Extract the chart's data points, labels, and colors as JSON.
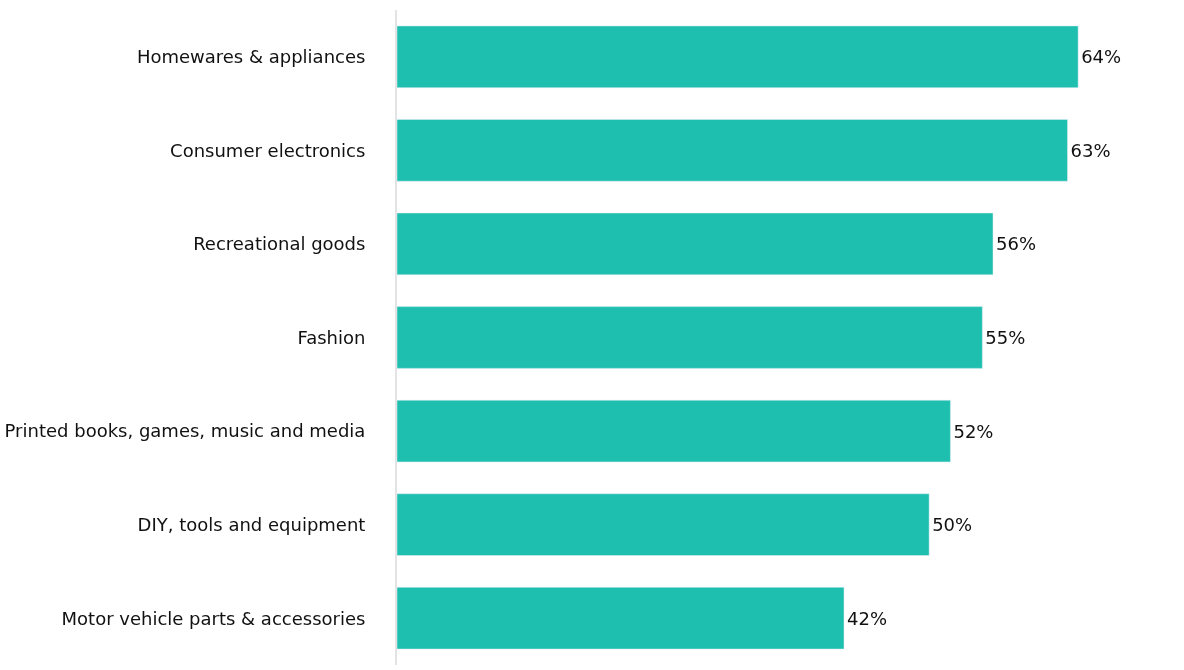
{
  "chart_data": {
    "type": "bar",
    "orientation": "horizontal",
    "categories": [
      "Homewares & appliances",
      "Consumer electronics",
      "Recreational goods",
      "Fashion",
      "Printed books, games, music and media",
      "DIY, tools and equipment",
      "Motor vehicle parts & accessories"
    ],
    "values": [
      64,
      63,
      56,
      55,
      52,
      50,
      42
    ],
    "value_labels": [
      "64%",
      "63%",
      "56%",
      "55%",
      "52%",
      "50%",
      "42%"
    ],
    "color": "#1fbfb0",
    "tick_labels": "y"
  }
}
